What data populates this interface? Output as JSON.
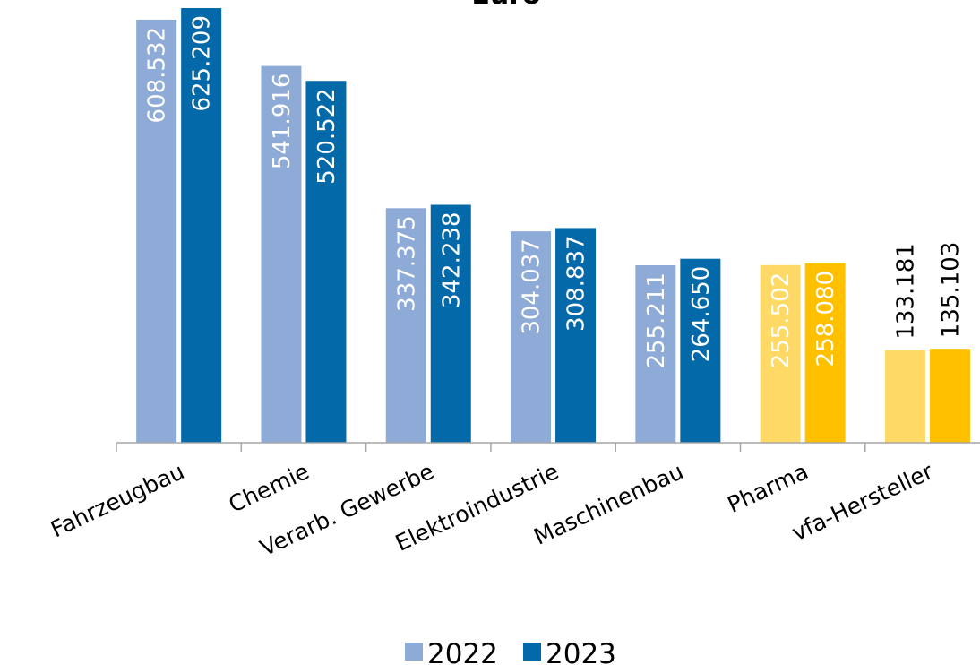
{
  "chart_data": {
    "type": "bar",
    "title": "Euro",
    "xlabel": "",
    "ylabel": "",
    "ylim": [
      0,
      630000
    ],
    "grid": false,
    "legend_position": "bottom",
    "categories": [
      "Fahrzeugbau",
      "Chemie",
      "Verarb. Gewerbe",
      "Elektroindustrie",
      "Maschinenbau",
      "Pharma",
      "vfa-Hersteller"
    ],
    "series": [
      {
        "name": "2022",
        "values": [
          608532,
          541916,
          337375,
          304037,
          255211,
          255502,
          133181
        ],
        "labels": [
          "608.532",
          "541.916",
          "337.375",
          "304.037",
          "255.211",
          "255.502",
          "133.181"
        ],
        "colors": [
          "#8eaad6",
          "#8eaad6",
          "#8eaad6",
          "#8eaad6",
          "#8eaad6",
          "#ffd966",
          "#ffd966"
        ]
      },
      {
        "name": "2023",
        "values": [
          625209,
          520522,
          342238,
          308837,
          264650,
          258080,
          135103
        ],
        "labels": [
          "625.209",
          "520.522",
          "342.238",
          "308.837",
          "264.650",
          "258.080",
          "135.103"
        ],
        "colors": [
          "#0469a9",
          "#0469a9",
          "#0469a9",
          "#0469a9",
          "#0469a9",
          "#ffc000",
          "#ffc000"
        ]
      }
    ],
    "legend": [
      {
        "name": "2022",
        "color": "#8eaad6"
      },
      {
        "name": "2023",
        "color": "#0469a9"
      }
    ],
    "colors": {
      "label_inside": "#ffffff",
      "label_outside": "#000000",
      "axis": "#a6a6a6"
    }
  }
}
